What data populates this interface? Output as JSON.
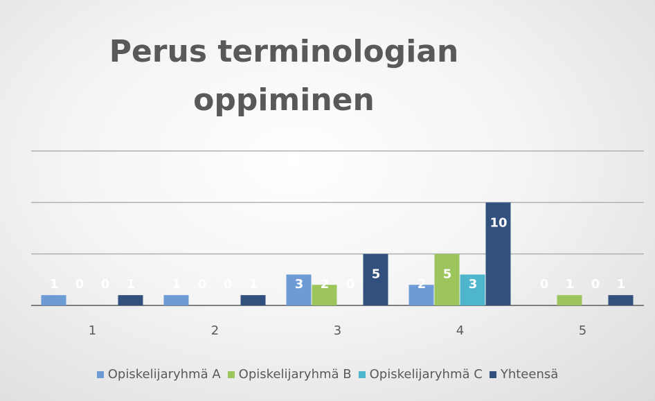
{
  "chart_data": {
    "type": "bar",
    "title": "Perus terminologian oppiminen",
    "categories": [
      "1",
      "2",
      "3",
      "4",
      "5"
    ],
    "series": [
      {
        "name": "Opiskelijaryhmä A",
        "color": "#6c9bd6",
        "values": [
          1,
          1,
          3,
          2,
          0
        ]
      },
      {
        "name": "Opiskelijaryhmä B",
        "color": "#9dc55d",
        "values": [
          0,
          0,
          2,
          5,
          1
        ]
      },
      {
        "name": "Opiskelijaryhmä C",
        "color": "#4fb5cc",
        "values": [
          0,
          0,
          0,
          3,
          0
        ]
      },
      {
        "name": "Yhteensä",
        "color": "#31507e",
        "values": [
          1,
          1,
          5,
          10,
          1
        ]
      }
    ],
    "ylim": [
      0,
      15
    ],
    "yticks": [
      0,
      5,
      10,
      15
    ],
    "grid": true,
    "legend": "bottom"
  }
}
